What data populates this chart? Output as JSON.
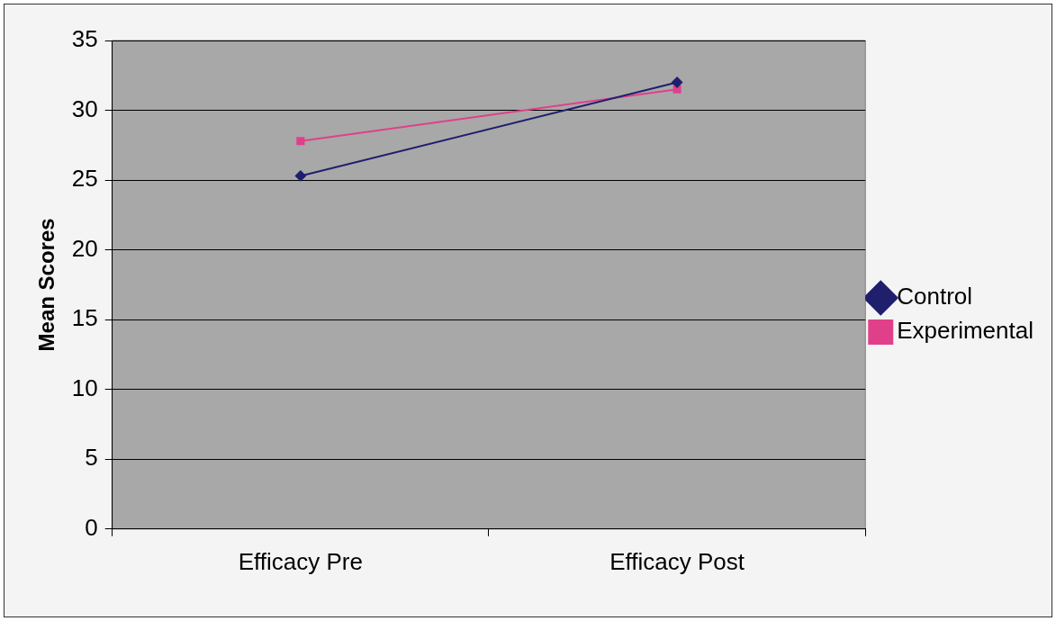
{
  "chart_data": {
    "type": "line",
    "ylabel": "Mean Scores",
    "categories": [
      "Efficacy Pre",
      "Efficacy Post"
    ],
    "series": [
      {
        "name": "Control",
        "color": "#1f1f6e",
        "values": [
          25.3,
          32
        ],
        "marker": "diamond"
      },
      {
        "name": "Experimental",
        "color": "#e0408a",
        "values": [
          27.8,
          31.5
        ],
        "marker": "square"
      }
    ],
    "ylim": [
      0,
      35
    ],
    "yticks": [
      0,
      5,
      10,
      15,
      20,
      25,
      30,
      35
    ],
    "grid": "y",
    "legend": "right",
    "line_style": "solid"
  }
}
